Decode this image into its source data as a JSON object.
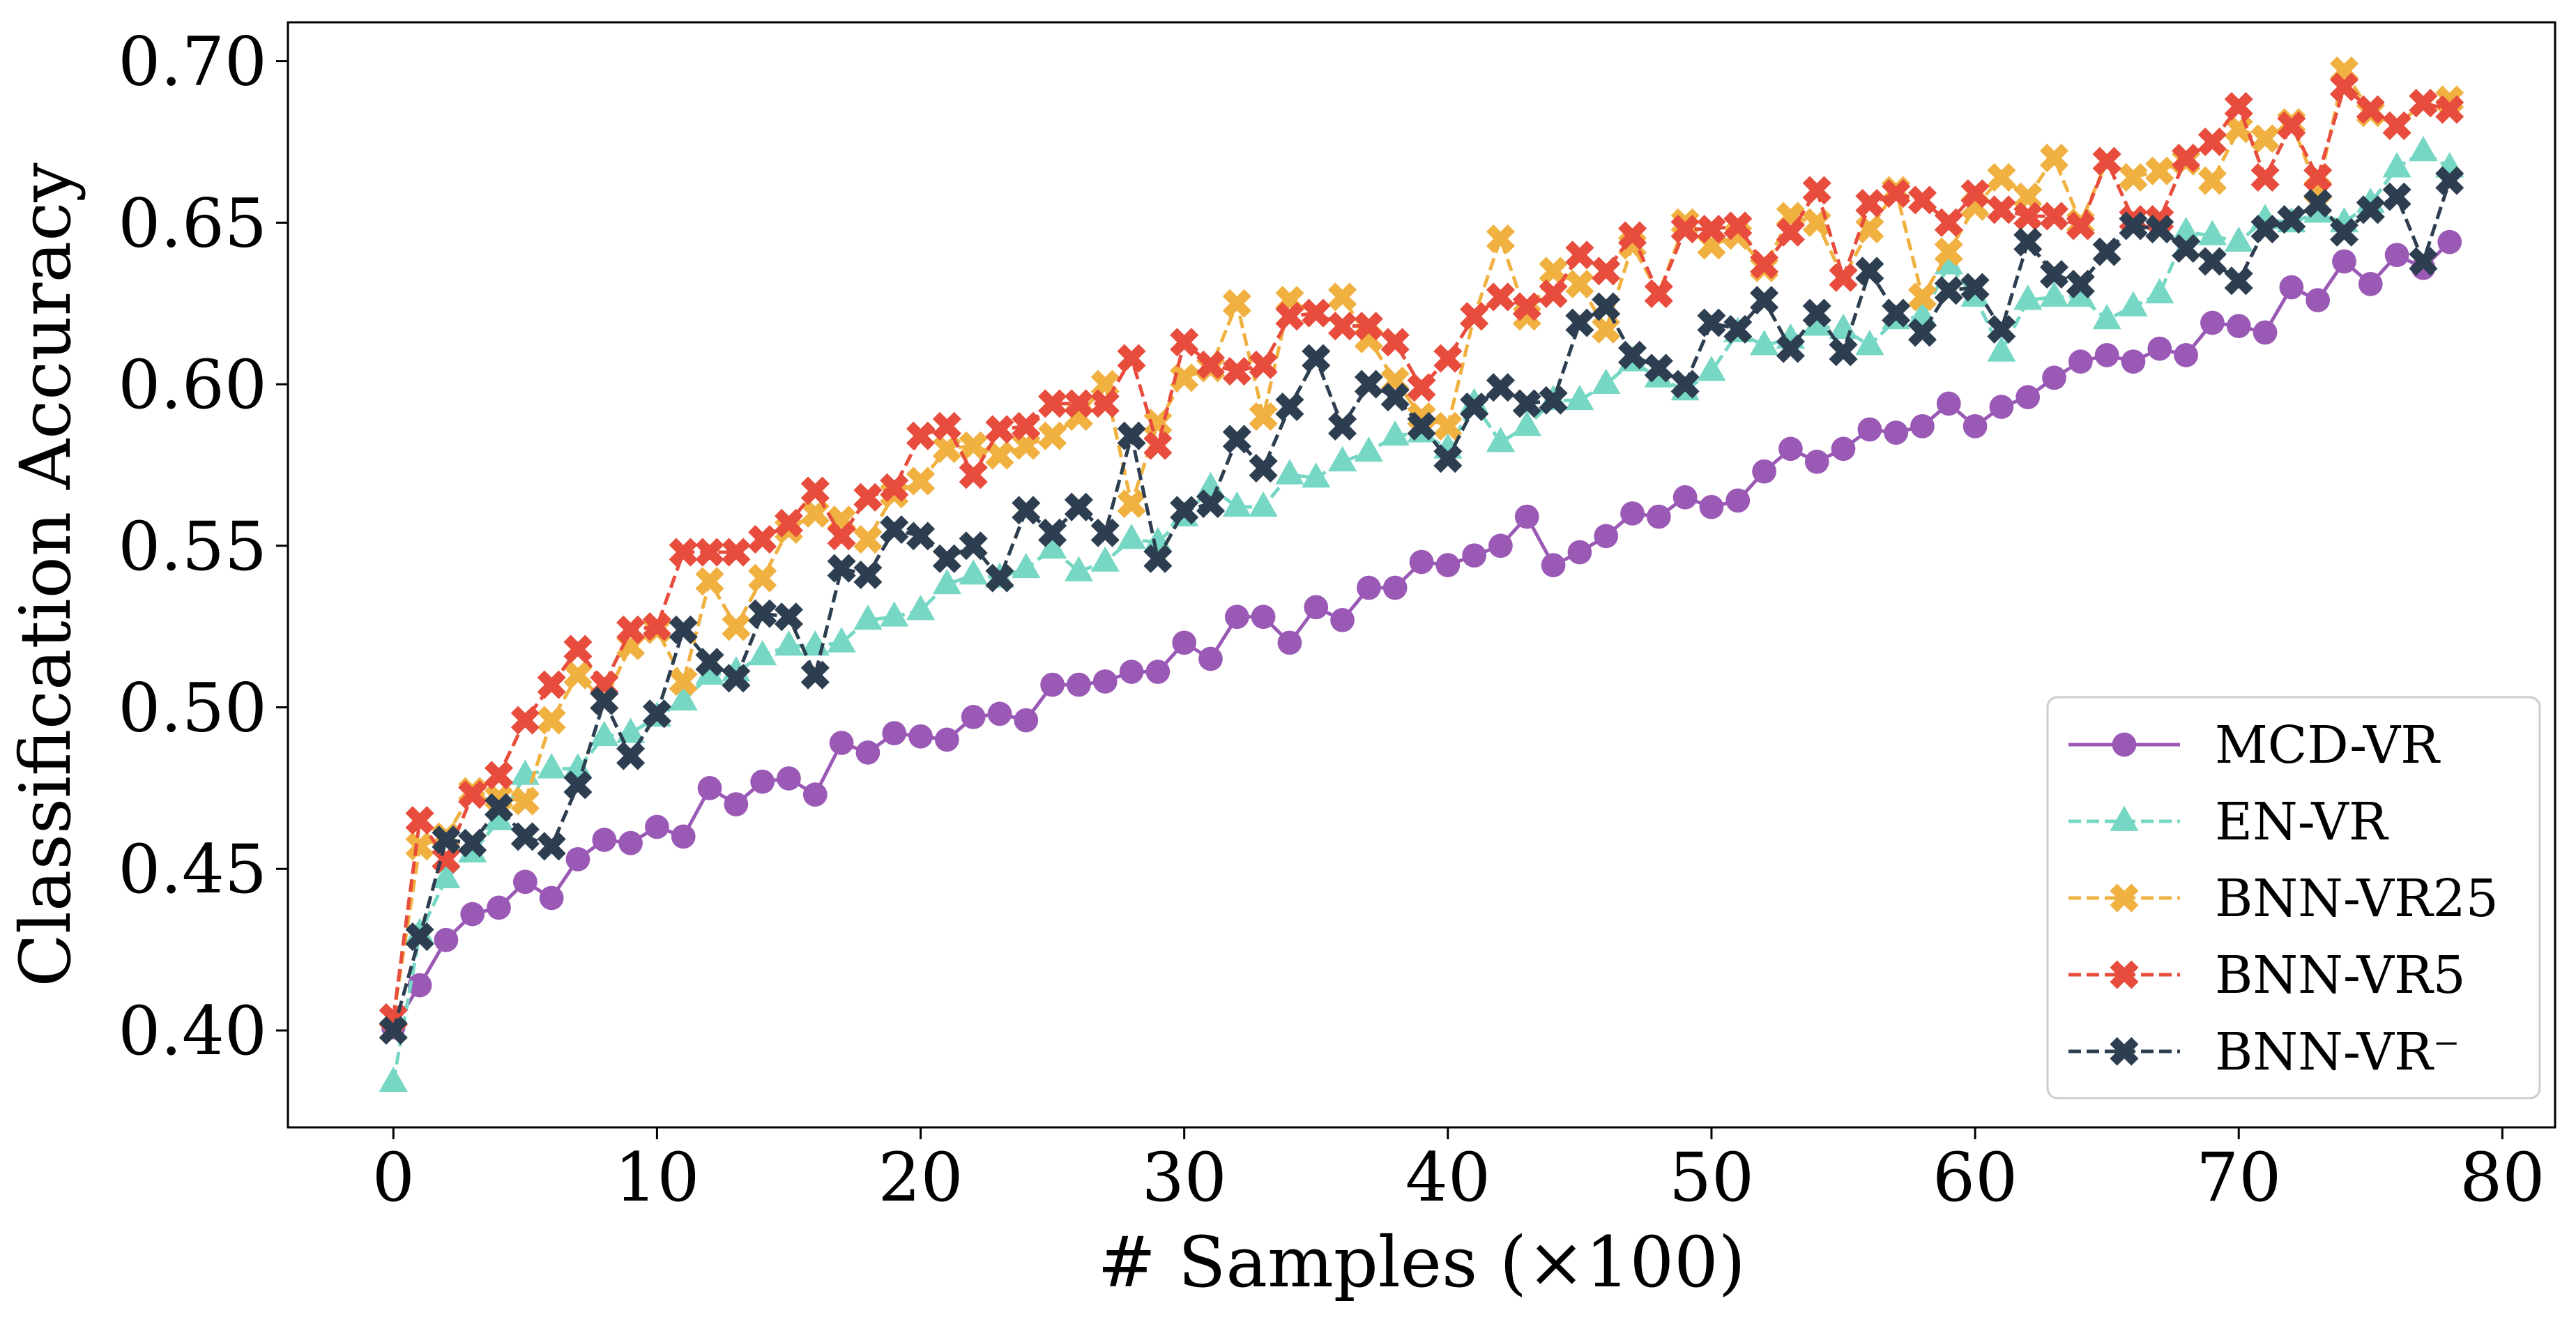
{
  "chart_data": {
    "type": "line",
    "title": "",
    "xlabel": "# Samples (×100)",
    "ylabel": "Classification Accuracy",
    "xlim": [
      -4,
      82
    ],
    "ylim": [
      0.37,
      0.712
    ],
    "xticks": [
      0,
      10,
      20,
      30,
      40,
      50,
      60,
      70,
      80
    ],
    "xtick_labels": [
      "0",
      "10",
      "20",
      "30",
      "40",
      "50",
      "60",
      "70",
      "80"
    ],
    "yticks": [
      0.4,
      0.45,
      0.5,
      0.55,
      0.6,
      0.65,
      0.7
    ],
    "ytick_labels": [
      "0.40",
      "0.45",
      "0.50",
      "0.55",
      "0.60",
      "0.65",
      "0.70"
    ],
    "grid": false,
    "legend_position": "bottom-right",
    "x": [
      0,
      1,
      2,
      3,
      4,
      5,
      6,
      7,
      8,
      9,
      10,
      11,
      12,
      13,
      14,
      15,
      16,
      17,
      18,
      19,
      20,
      21,
      22,
      23,
      24,
      25,
      26,
      27,
      28,
      29,
      30,
      31,
      32,
      33,
      34,
      35,
      36,
      37,
      38,
      39,
      40,
      41,
      42,
      43,
      44,
      45,
      46,
      47,
      48,
      49,
      50,
      51,
      52,
      53,
      54,
      55,
      56,
      57,
      58,
      59,
      60,
      61,
      62,
      63,
      64,
      65,
      66,
      67,
      68,
      69,
      70,
      71,
      72,
      73,
      74,
      75,
      76,
      77,
      78
    ],
    "series": [
      {
        "name": "MCD-VR",
        "color": "#9b59b6",
        "dashed": false,
        "marker": "circle",
        "values": [
          0.401,
          0.414,
          0.428,
          0.436,
          0.438,
          0.446,
          0.441,
          0.453,
          0.459,
          0.458,
          0.463,
          0.46,
          0.475,
          0.47,
          0.477,
          0.478,
          0.473,
          0.489,
          0.486,
          0.492,
          0.491,
          0.49,
          0.497,
          0.498,
          0.496,
          0.507,
          0.507,
          0.508,
          0.511,
          0.511,
          0.52,
          0.515,
          0.528,
          0.528,
          0.52,
          0.531,
          0.527,
          0.537,
          0.537,
          0.545,
          0.544,
          0.547,
          0.55,
          0.559,
          0.544,
          0.548,
          0.553,
          0.56,
          0.559,
          0.565,
          0.562,
          0.564,
          0.573,
          0.58,
          0.576,
          0.58,
          0.586,
          0.585,
          0.587,
          0.594,
          0.587,
          0.593,
          0.596,
          0.602,
          0.607,
          0.609,
          0.607,
          0.611,
          0.609,
          0.619,
          0.618,
          0.616,
          0.63,
          0.626,
          0.638,
          0.631,
          0.64,
          0.636,
          0.644
        ]
      },
      {
        "name": "EN-VR",
        "color": "#76d7c4",
        "dashed": true,
        "marker": "triangle",
        "values": [
          0.384,
          0.43,
          0.447,
          0.455,
          0.465,
          0.479,
          0.481,
          0.481,
          0.491,
          0.492,
          0.497,
          0.502,
          0.51,
          0.511,
          0.516,
          0.519,
          0.519,
          0.52,
          0.527,
          0.528,
          0.53,
          0.538,
          0.541,
          0.54,
          0.543,
          0.549,
          0.542,
          0.545,
          0.552,
          0.551,
          0.559,
          0.568,
          0.562,
          0.562,
          0.572,
          0.571,
          0.576,
          0.579,
          0.584,
          0.585,
          0.58,
          0.594,
          0.582,
          0.587,
          0.595,
          0.595,
          0.6,
          0.607,
          0.602,
          0.598,
          0.604,
          0.616,
          0.612,
          0.614,
          0.618,
          0.617,
          0.612,
          0.62,
          0.621,
          0.637,
          0.627,
          0.61,
          0.626,
          0.627,
          0.627,
          0.62,
          0.624,
          0.628,
          0.647,
          0.646,
          0.644,
          0.651,
          0.65,
          0.653,
          0.65,
          0.656,
          0.667,
          0.672,
          0.667
        ]
      },
      {
        "name": "BNN-VR25",
        "color": "#f0b141",
        "dashed": true,
        "marker": "x",
        "values": [
          0.404,
          0.457,
          0.46,
          0.474,
          0.472,
          0.471,
          0.496,
          0.51,
          0.502,
          0.519,
          0.524,
          0.508,
          0.539,
          0.525,
          0.54,
          0.555,
          0.56,
          0.558,
          0.552,
          0.566,
          0.57,
          0.58,
          0.581,
          0.578,
          0.581,
          0.584,
          0.59,
          0.6,
          0.563,
          0.588,
          0.602,
          0.605,
          0.625,
          0.59,
          0.626,
          0.622,
          0.627,
          0.614,
          0.601,
          0.59,
          0.587,
          0.621,
          0.645,
          0.621,
          0.635,
          0.631,
          0.617,
          0.643,
          0.628,
          0.65,
          0.643,
          0.646,
          0.636,
          0.652,
          0.65,
          0.633,
          0.648,
          0.66,
          0.627,
          0.641,
          0.655,
          0.664,
          0.658,
          0.67,
          0.65,
          0.669,
          0.664,
          0.666,
          0.669,
          0.663,
          0.679,
          0.676,
          0.681,
          0.66,
          0.697,
          0.684,
          0.68,
          0.687,
          0.688
        ]
      },
      {
        "name": "BNN-VR5",
        "color": "#e74c3c",
        "dashed": true,
        "marker": "x",
        "values": [
          0.404,
          0.465,
          0.453,
          0.473,
          0.479,
          0.496,
          0.507,
          0.518,
          0.507,
          0.524,
          0.525,
          0.548,
          0.548,
          0.548,
          0.552,
          0.557,
          0.567,
          0.553,
          0.565,
          0.568,
          0.584,
          0.587,
          0.572,
          0.586,
          0.587,
          0.594,
          0.594,
          0.594,
          0.608,
          0.581,
          0.613,
          0.606,
          0.604,
          0.606,
          0.621,
          0.622,
          0.618,
          0.618,
          0.613,
          0.599,
          0.608,
          0.621,
          0.627,
          0.624,
          0.628,
          0.64,
          0.635,
          0.646,
          0.628,
          0.648,
          0.648,
          0.649,
          0.637,
          0.647,
          0.66,
          0.633,
          0.656,
          0.659,
          0.657,
          0.65,
          0.659,
          0.654,
          0.652,
          0.652,
          0.649,
          0.669,
          0.651,
          0.651,
          0.67,
          0.675,
          0.686,
          0.664,
          0.68,
          0.664,
          0.692,
          0.685,
          0.68,
          0.687,
          0.685
        ]
      },
      {
        "name": "BNN-VR⁻",
        "color": "#2c3e50",
        "dashed": true,
        "marker": "x",
        "values": [
          0.4,
          0.429,
          0.459,
          0.458,
          0.469,
          0.46,
          0.457,
          0.476,
          0.502,
          0.485,
          0.498,
          0.524,
          0.514,
          0.509,
          0.529,
          0.528,
          0.51,
          0.543,
          0.541,
          0.555,
          0.553,
          0.546,
          0.55,
          0.54,
          0.561,
          0.554,
          0.562,
          0.554,
          0.584,
          0.546,
          0.561,
          0.563,
          0.583,
          0.574,
          0.593,
          0.608,
          0.587,
          0.6,
          0.596,
          0.587,
          0.577,
          0.593,
          0.599,
          0.594,
          0.595,
          0.619,
          0.624,
          0.609,
          0.605,
          0.6,
          0.619,
          0.617,
          0.626,
          0.611,
          0.622,
          0.61,
          0.635,
          0.622,
          0.616,
          0.629,
          0.63,
          0.617,
          0.644,
          0.634,
          0.631,
          0.641,
          0.649,
          0.648,
          0.642,
          0.638,
          0.632,
          0.648,
          0.651,
          0.656,
          0.647,
          0.654,
          0.658,
          0.638,
          0.663
        ]
      }
    ]
  }
}
